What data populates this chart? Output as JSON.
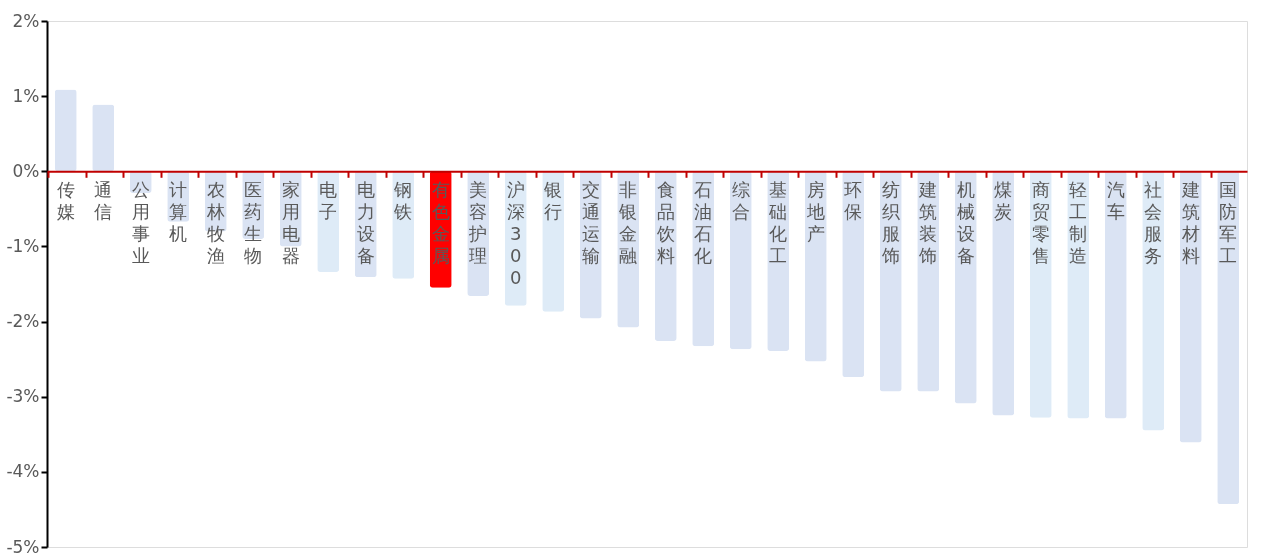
{
  "chart_data": {
    "type": "bar",
    "categories": [
      "传媒",
      "通信",
      "公用事业",
      "计算机",
      "农林牧渔",
      "医药生物",
      "家用电器",
      "电子",
      "电力设备",
      "钢铁",
      "有色金属",
      "美容护理",
      "沪深300",
      "银行",
      "交通运输",
      "非银金融",
      "食品饮料",
      "石油石化",
      "综合",
      "基础化工",
      "房地产",
      "环保",
      "纺织服饰",
      "建筑装饰",
      "机械设备",
      "煤炭",
      "商贸零售",
      "轻工制造",
      "汽车",
      "社会服务",
      "建筑材料",
      "国防军工"
    ],
    "values": [
      1.09,
      0.89,
      -0.29,
      -0.67,
      -0.8,
      -0.9,
      -1.0,
      -1.34,
      -1.41,
      -1.43,
      -1.55,
      -1.66,
      -1.79,
      -1.87,
      -1.96,
      -2.08,
      -2.26,
      -2.33,
      -2.37,
      -2.39,
      -2.53,
      -2.74,
      -2.93,
      -2.93,
      -3.09,
      -3.25,
      -3.28,
      -3.29,
      -3.29,
      -3.45,
      -3.61,
      -4.43
    ],
    "colors": [
      "#dae3f3",
      "#dae3f3",
      "#dae3f3",
      "#dae3f3",
      "#dae3f3",
      "#dae3f3",
      "#dae3f3",
      "#deebf7",
      "#dae3f3",
      "#deebf7",
      "#ff0000",
      "#dae3f3",
      "#deebf7",
      "#deebf7",
      "#dae3f3",
      "#dae3f3",
      "#dae3f3",
      "#dae3f3",
      "#dae3f3",
      "#dae3f3",
      "#dae3f3",
      "#dae3f3",
      "#dae3f3",
      "#dae3f3",
      "#dae3f3",
      "#dae3f3",
      "#deebf7",
      "#deebf7",
      "#dae3f3",
      "#deebf7",
      "#dae3f3",
      "#dae3f3"
    ],
    "ylim": [
      -5,
      2
    ],
    "yticks": [
      {
        "value": -5,
        "label": "-5%"
      },
      {
        "value": -4,
        "label": "-4%"
      },
      {
        "value": -3,
        "label": "-3%"
      },
      {
        "value": -2,
        "label": "-2%"
      },
      {
        "value": -1,
        "label": "-1%"
      },
      {
        "value": 0,
        "label": "0%"
      },
      {
        "value": 1,
        "label": "1%"
      },
      {
        "value": 2,
        "label": "2%"
      }
    ],
    "grid": false,
    "legend": false
  }
}
